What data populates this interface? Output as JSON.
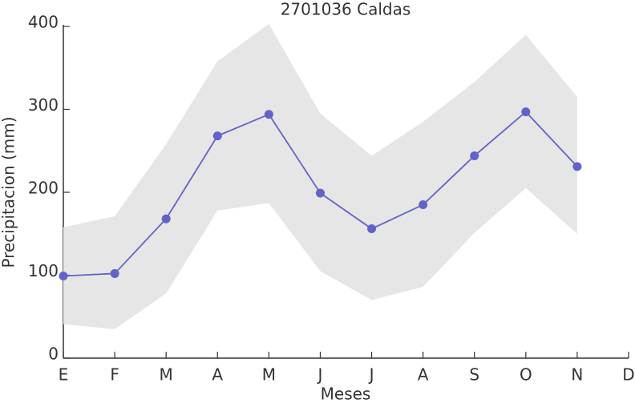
{
  "chart_data": {
    "type": "line",
    "title": "2701036 Caldas",
    "x_label": "Meses",
    "y_label": "Precipitacion (mm)",
    "categories": [
      "E",
      "F",
      "M",
      "A",
      "M",
      "J",
      "J",
      "A",
      "S",
      "O",
      "N",
      "D"
    ],
    "series": [
      {
        "color": "#6262c9",
        "values": [
          99,
          102,
          168,
          268,
          294,
          199,
          156,
          185,
          244,
          297,
          231,
          null
        ]
      }
    ],
    "band": {
      "color": "#e6e6e6",
      "upper": [
        158,
        171,
        258,
        358,
        403,
        295,
        244,
        285,
        333,
        390,
        315,
        null
      ],
      "lower": [
        41,
        35,
        78,
        178,
        187,
        105,
        70,
        86,
        151,
        205,
        150,
        null
      ]
    },
    "ylim": [
      0,
      400
    ],
    "yticks": [
      0,
      100,
      200,
      300,
      400
    ]
  }
}
